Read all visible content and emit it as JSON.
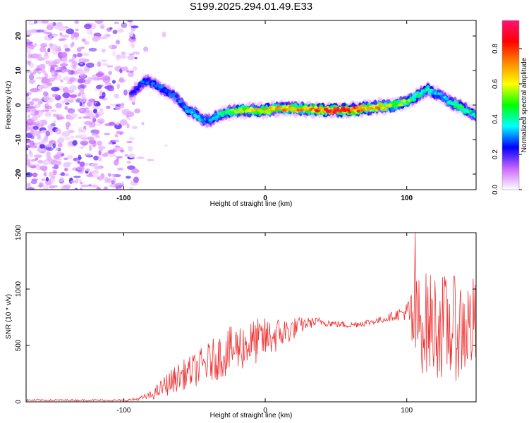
{
  "title": "S199.2025.294.01.49.E33",
  "chart_data": [
    {
      "type": "heatmap",
      "name": "spectrogram",
      "xlabel": "Height of straight line (km)",
      "ylabel": "Frequency (Hz)",
      "xlim": [
        -169,
        149
      ],
      "ylim": [
        -24.5,
        24.5
      ],
      "xticks": [
        "-100",
        "0",
        "100"
      ],
      "yticks": [
        "20",
        "10",
        "0",
        "-10",
        "-20"
      ],
      "colorbar": {
        "label": "Normalized spectral amplitude",
        "range": [
          0.0,
          0.96
        ],
        "ticks": [
          "0.0",
          "0.2",
          "0.4",
          "0.6",
          "0.8"
        ],
        "colors": [
          "#ffffff",
          "#cc66ff",
          "#0000ff",
          "#00ffff",
          "#00ff00",
          "#ffff00",
          "#ff8800",
          "#ff0000",
          "#ff1177"
        ]
      },
      "noise_region_x": [
        -169,
        -90
      ],
      "ridge": {
        "x": [
          -95,
          -90,
          -85,
          -80,
          -75,
          -70,
          -65,
          -60,
          -55,
          -50,
          -45,
          -40,
          -35,
          -30,
          -25,
          -20,
          -10,
          0,
          10,
          20,
          30,
          40,
          50,
          60,
          70,
          80,
          90,
          100,
          105,
          110,
          115,
          120,
          125,
          130,
          135,
          140,
          145,
          149
        ],
        "y": [
          3,
          5,
          7,
          6.5,
          5,
          4,
          3,
          1,
          -1.5,
          -2.5,
          -4,
          -4.5,
          -3.5,
          -2.5,
          -2,
          -1.5,
          -1.5,
          -1.5,
          -1,
          -1,
          -1.2,
          -1.5,
          -1.5,
          -1.5,
          -1,
          -0.5,
          -0.2,
          1,
          2,
          3.5,
          4.5,
          3.5,
          2.5,
          1,
          0,
          -1,
          -2,
          -3
        ],
        "amplitude": [
          0.2,
          0.25,
          0.3,
          0.3,
          0.3,
          0.3,
          0.3,
          0.3,
          0.35,
          0.4,
          0.35,
          0.35,
          0.4,
          0.45,
          0.5,
          0.6,
          0.65,
          0.7,
          0.7,
          0.72,
          0.75,
          0.8,
          0.9,
          0.88,
          0.8,
          0.7,
          0.6,
          0.55,
          0.5,
          0.45,
          0.45,
          0.4,
          0.35,
          0.4,
          0.5,
          0.5,
          0.45,
          0.4
        ]
      }
    },
    {
      "type": "line",
      "name": "snr",
      "xlabel": "Height of straight line (km)",
      "ylabel": "SNR (10 * v/v)",
      "xlim": [
        -169,
        149
      ],
      "ylim": [
        0,
        1500
      ],
      "xticks": [
        "-100",
        "0",
        "100"
      ],
      "yticks": [
        "0",
        "500",
        "1000",
        "1500"
      ],
      "color": "#ee3333",
      "envelope": {
        "x": [
          -169,
          -120,
          -100,
          -90,
          -80,
          -70,
          -60,
          -50,
          -40,
          -30,
          -20,
          -10,
          0,
          10,
          20,
          30,
          40,
          50,
          60,
          70,
          80,
          90,
          100,
          103,
          110,
          120,
          130,
          140,
          149
        ],
        "center": [
          15,
          15,
          12,
          25,
          60,
          150,
          230,
          280,
          350,
          420,
          480,
          520,
          560,
          600,
          650,
          700,
          710,
          690,
          680,
          700,
          720,
          760,
          800,
          700,
          700,
          690,
          650,
          650,
          700
        ],
        "amplitude": [
          8,
          8,
          10,
          15,
          40,
          100,
          130,
          150,
          180,
          210,
          220,
          210,
          190,
          150,
          100,
          50,
          40,
          30,
          30,
          30,
          30,
          40,
          80,
          380,
          450,
          480,
          470,
          460,
          420
        ],
        "peak": {
          "x": 106,
          "y": 1500
        }
      }
    }
  ]
}
